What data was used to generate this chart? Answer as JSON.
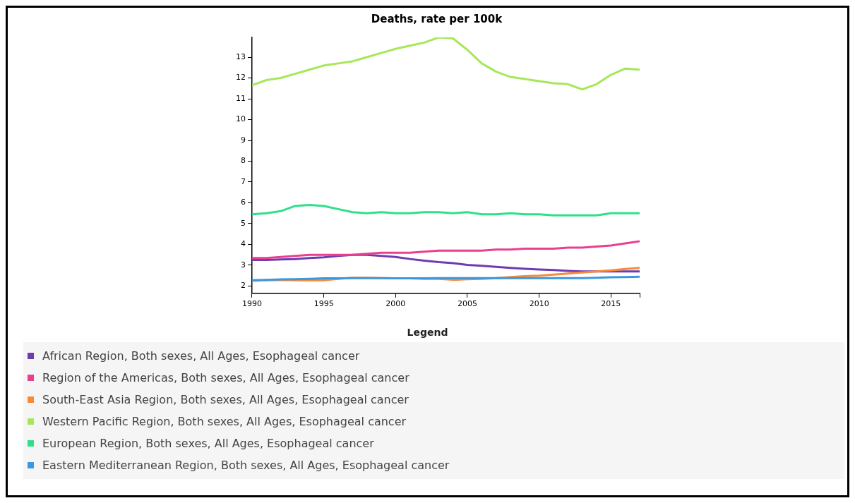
{
  "chart_data": {
    "type": "line",
    "title": "Deaths, rate per 100k",
    "legend_title": "Legend",
    "legend": "bottom",
    "grid": false,
    "marker": "none",
    "line_style": "solid",
    "x": [
      1990,
      1991,
      1992,
      1993,
      1994,
      1995,
      1996,
      1997,
      1998,
      1999,
      2000,
      2001,
      2002,
      2003,
      2004,
      2005,
      2006,
      2007,
      2008,
      2009,
      2010,
      2011,
      2012,
      2013,
      2014,
      2015,
      2016,
      2017
    ],
    "xlim": [
      1990,
      2017
    ],
    "xticks": [
      1990,
      1995,
      2000,
      2005,
      2010,
      2015,
      {
        "value": 2017,
        "label": null
      }
    ],
    "ylim": [
      1.65,
      13.95
    ],
    "yticks": [
      2,
      3,
      4,
      5,
      6,
      7,
      8,
      9,
      10,
      11,
      12,
      13
    ],
    "series": [
      {
        "name": "African Region, Both sexes, All Ages, Esophageal cancer",
        "color": "#6f3bb0",
        "values": [
          3.25,
          3.25,
          3.28,
          3.3,
          3.35,
          3.38,
          3.45,
          3.5,
          3.5,
          3.45,
          3.4,
          3.3,
          3.22,
          3.15,
          3.1,
          3.02,
          2.97,
          2.92,
          2.87,
          2.83,
          2.8,
          2.77,
          2.73,
          2.7,
          2.7,
          2.7,
          2.7,
          2.7
        ]
      },
      {
        "name": "Region of the Americas, Both sexes, All Ages, Esophageal cancer",
        "color": "#e8408f",
        "values": [
          3.35,
          3.35,
          3.4,
          3.45,
          3.5,
          3.5,
          3.5,
          3.5,
          3.55,
          3.6,
          3.6,
          3.6,
          3.65,
          3.7,
          3.7,
          3.7,
          3.7,
          3.75,
          3.75,
          3.8,
          3.8,
          3.8,
          3.85,
          3.85,
          3.9,
          3.95,
          4.05,
          4.15
        ]
      },
      {
        "name": "South-East Asia Region, Both sexes, All Ages, Esophageal cancer",
        "color": "#f88a3a",
        "values": [
          2.25,
          2.28,
          2.3,
          2.28,
          2.28,
          2.28,
          2.35,
          2.4,
          2.4,
          2.38,
          2.37,
          2.37,
          2.35,
          2.35,
          2.3,
          2.33,
          2.35,
          2.38,
          2.43,
          2.47,
          2.5,
          2.55,
          2.6,
          2.65,
          2.7,
          2.75,
          2.82,
          2.87
        ]
      },
      {
        "name": "Western Pacific Region, Both sexes, All Ages, Esophageal cancer",
        "color": "#a6e858",
        "values": [
          11.65,
          11.9,
          12.0,
          12.2,
          12.4,
          12.6,
          12.7,
          12.8,
          13.0,
          13.2,
          13.4,
          13.55,
          13.7,
          13.95,
          13.9,
          13.35,
          12.7,
          12.3,
          12.05,
          11.95,
          11.85,
          11.75,
          11.7,
          11.45,
          11.7,
          12.15,
          12.45,
          12.4
        ]
      },
      {
        "name": "European Region, Both sexes, All Ages, Esophageal cancer",
        "color": "#2ee08a",
        "values": [
          5.45,
          5.5,
          5.6,
          5.85,
          5.9,
          5.85,
          5.7,
          5.55,
          5.5,
          5.55,
          5.5,
          5.5,
          5.55,
          5.55,
          5.5,
          5.55,
          5.45,
          5.45,
          5.5,
          5.45,
          5.45,
          5.4,
          5.4,
          5.4,
          5.4,
          5.5,
          5.5,
          5.5
        ]
      },
      {
        "name": "Eastern Mediterranean Region, Both sexes, All Ages, Esophageal cancer",
        "color": "#3a98e0",
        "values": [
          2.28,
          2.3,
          2.32,
          2.33,
          2.35,
          2.37,
          2.37,
          2.38,
          2.38,
          2.38,
          2.37,
          2.37,
          2.37,
          2.38,
          2.38,
          2.38,
          2.38,
          2.38,
          2.38,
          2.38,
          2.38,
          2.38,
          2.38,
          2.38,
          2.4,
          2.42,
          2.43,
          2.45
        ]
      }
    ]
  }
}
